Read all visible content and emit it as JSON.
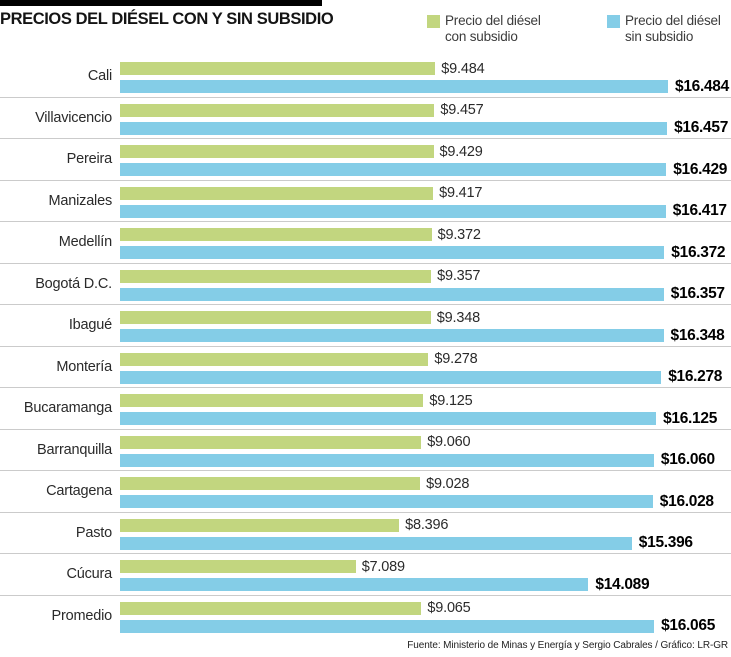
{
  "header": {
    "title": "PRECIOS DEL DIÉSEL CON Y SIN SUBSIDIO",
    "legend": [
      {
        "line1": "Precio del diésel",
        "line2": "con subsidio"
      },
      {
        "line1": "Precio del diésel",
        "line2": "sin subsidio"
      }
    ]
  },
  "footer": {
    "source": "Fuente: Ministerio de Minas y Energía y Sergio Cabrales / Gráfico: LR-GR"
  },
  "colors": {
    "con_subsidio": "#c2d67f",
    "sin_subsidio": "#84cde7",
    "separator": "#cbcbcb",
    "accent_bar": "#000000"
  },
  "chart_data": {
    "type": "bar",
    "orientation": "horizontal",
    "title": "PRECIOS DEL DIÉSEL CON Y SIN SUBSIDIO",
    "categories": [
      "Cali",
      "Villavicencio",
      "Pereira",
      "Manizales",
      "Medellín",
      "Bogotá D.C.",
      "Ibagué",
      "Montería",
      "Bucaramanga",
      "Barranquilla",
      "Cartagena",
      "Pasto",
      "Cúcura",
      "Promedio"
    ],
    "series": [
      {
        "name": "Precio del diésel con subsidio",
        "color": "#c2d67f",
        "values": [
          9484,
          9457,
          9429,
          9417,
          9372,
          9357,
          9348,
          9278,
          9125,
          9060,
          9028,
          8396,
          7089,
          9065
        ],
        "labels": [
          "$9.484",
          "$9.457",
          "$9.429",
          "$9.417",
          "$9.372",
          "$9.357",
          "$9.348",
          "$9.278",
          "$9.125",
          "$9.060",
          "$9.028",
          "$8.396",
          "$7.089",
          "$9.065"
        ]
      },
      {
        "name": "Precio del diésel sin subsidio",
        "color": "#84cde7",
        "values": [
          16484,
          16457,
          16429,
          16417,
          16372,
          16357,
          16348,
          16278,
          16125,
          16060,
          16028,
          15396,
          14089,
          16065
        ],
        "labels": [
          "$16.484",
          "$16.457",
          "$16.429",
          "$16.417",
          "$16.372",
          "$16.357",
          "$16.348",
          "$16.278",
          "$16.125",
          "$16.060",
          "$16.028",
          "$15.396",
          "$14.089",
          "$16.065"
        ]
      }
    ],
    "xlim": [
      0,
      16484
    ],
    "grid": false,
    "legend_position": "top-right",
    "value_labels": "end-of-bar"
  }
}
